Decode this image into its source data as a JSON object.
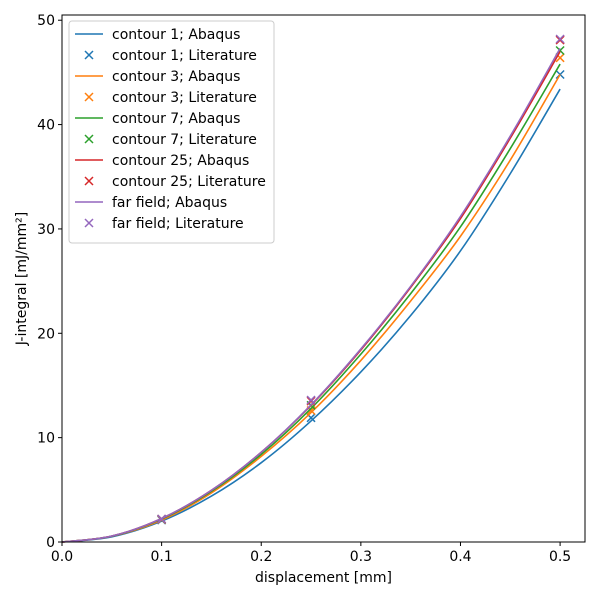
{
  "chart_data": {
    "type": "line",
    "xlabel": "displacement [mm]",
    "ylabel": "J-integral [mJ/mm²]",
    "xlim": [
      0.0,
      0.525
    ],
    "ylim": [
      0,
      50.5
    ],
    "xticks": [
      "0.0",
      "0.1",
      "0.2",
      "0.3",
      "0.4",
      "0.5"
    ],
    "yticks": [
      "0",
      "10",
      "20",
      "30",
      "40",
      "50"
    ],
    "legend_position": "top-left",
    "grid": false,
    "series": [
      {
        "name": "contour 1; Abaqus",
        "marker": "line",
        "color": "#1f77b4",
        "x": [
          0,
          0.05,
          0.1,
          0.15,
          0.2,
          0.25,
          0.3,
          0.35,
          0.4,
          0.45,
          0.5
        ],
        "y": [
          0,
          0.5,
          2.0,
          4.4,
          7.6,
          11.6,
          16.3,
          21.7,
          27.9,
          35.3,
          43.4
        ]
      },
      {
        "name": "contour 1; Literature",
        "marker": "x",
        "color": "#1f77b4",
        "x": [
          0.1,
          0.25,
          0.5
        ],
        "y": [
          2.1,
          11.9,
          44.8
        ]
      },
      {
        "name": "contour 3; Abaqus",
        "marker": "line",
        "color": "#ff7f0e",
        "x": [
          0,
          0.05,
          0.1,
          0.15,
          0.2,
          0.25,
          0.3,
          0.35,
          0.4,
          0.45,
          0.5
        ],
        "y": [
          0,
          0.55,
          2.1,
          4.7,
          8.2,
          12.4,
          17.4,
          23.1,
          29.3,
          36.6,
          44.8
        ]
      },
      {
        "name": "contour 3; Literature",
        "marker": "x",
        "color": "#ff7f0e",
        "x": [
          0.1,
          0.25,
          0.5
        ],
        "y": [
          2.15,
          12.6,
          46.4
        ]
      },
      {
        "name": "contour 7; Abaqus",
        "marker": "line",
        "color": "#2ca02c",
        "x": [
          0,
          0.05,
          0.1,
          0.15,
          0.2,
          0.25,
          0.3,
          0.35,
          0.4,
          0.45,
          0.5
        ],
        "y": [
          0,
          0.56,
          2.2,
          4.85,
          8.4,
          12.8,
          18.0,
          23.8,
          30.2,
          37.7,
          45.8
        ]
      },
      {
        "name": "contour 7; Literature",
        "marker": "x",
        "color": "#2ca02c",
        "x": [
          0.1,
          0.25,
          0.5
        ],
        "y": [
          2.2,
          13.1,
          47.1
        ]
      },
      {
        "name": "contour 25; Abaqus",
        "marker": "line",
        "color": "#d62728",
        "x": [
          0,
          0.05,
          0.1,
          0.15,
          0.2,
          0.25,
          0.3,
          0.35,
          0.4,
          0.45,
          0.5
        ],
        "y": [
          0,
          0.57,
          2.25,
          4.95,
          8.6,
          13.1,
          18.4,
          24.4,
          31.0,
          38.7,
          47.0
        ]
      },
      {
        "name": "contour 25; Literature",
        "marker": "x",
        "color": "#d62728",
        "x": [
          0.1,
          0.25,
          0.5
        ],
        "y": [
          2.2,
          13.5,
          48.1
        ]
      },
      {
        "name": "far field; Abaqus",
        "marker": "line",
        "color": "#9467bd",
        "x": [
          0,
          0.05,
          0.1,
          0.15,
          0.2,
          0.25,
          0.3,
          0.35,
          0.4,
          0.45,
          0.5
        ],
        "y": [
          0,
          0.57,
          2.25,
          4.95,
          8.6,
          13.15,
          18.5,
          24.5,
          31.2,
          38.9,
          47.3
        ]
      },
      {
        "name": "far field; Literature",
        "marker": "x",
        "color": "#9467bd",
        "x": [
          0.1,
          0.25,
          0.5
        ],
        "y": [
          2.2,
          13.6,
          48.2
        ]
      }
    ]
  }
}
